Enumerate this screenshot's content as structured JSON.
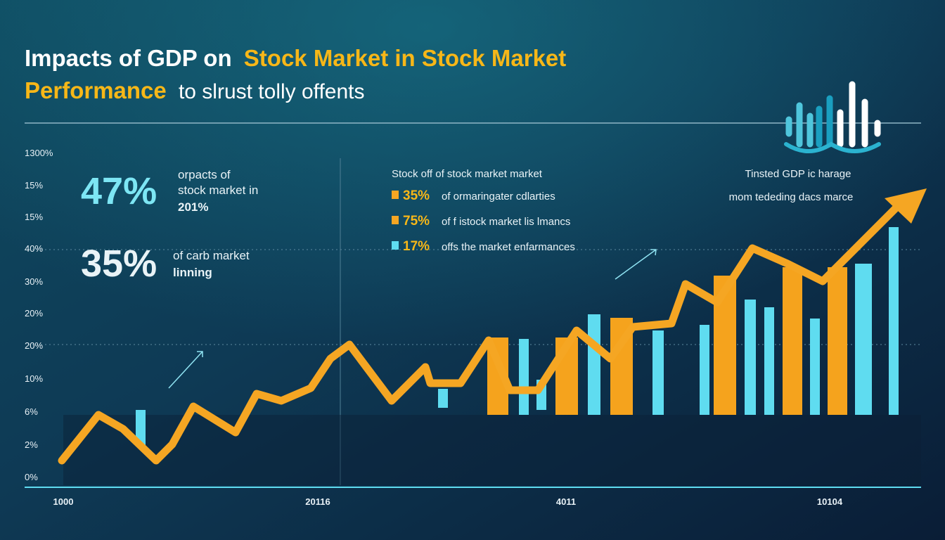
{
  "header": {
    "title_line1_white": "Impacts of GDP on",
    "title_line1_yellow": "Stock Market in Stock Market",
    "title_line2_yellow": "Performance",
    "title_line2_white": "to slrust tolly offents"
  },
  "stats": [
    {
      "value": "47%",
      "lines": [
        "orpacts of",
        "stock market in"
      ],
      "bold_line": "201%"
    },
    {
      "value": "35%",
      "lines": [
        "of carb market"
      ],
      "bold_line": "linning"
    }
  ],
  "legend": {
    "heading": "Stock off of stock market market",
    "items": [
      {
        "value": "35%",
        "text": "of ormaringater cdlarties",
        "color": "#f5a623"
      },
      {
        "value": "75%",
        "text": "of f istock market lis lmancs",
        "color": "#f5a623"
      },
      {
        "value": "17%",
        "text": "offs the market enfarmances",
        "color": "#5fdcf0"
      }
    ]
  },
  "annotation": [
    "Tinsted GDP ic harage",
    "mom tededing dacs marce"
  ],
  "y_axis_labels": [
    "1300%",
    "15%",
    "15%",
    "40%",
    "30%",
    "20%",
    "20%",
    "10%",
    "6%",
    "2%",
    "0%"
  ],
  "x_axis_labels": [
    "1000",
    "20116",
    "4011",
    "10104"
  ]
}
